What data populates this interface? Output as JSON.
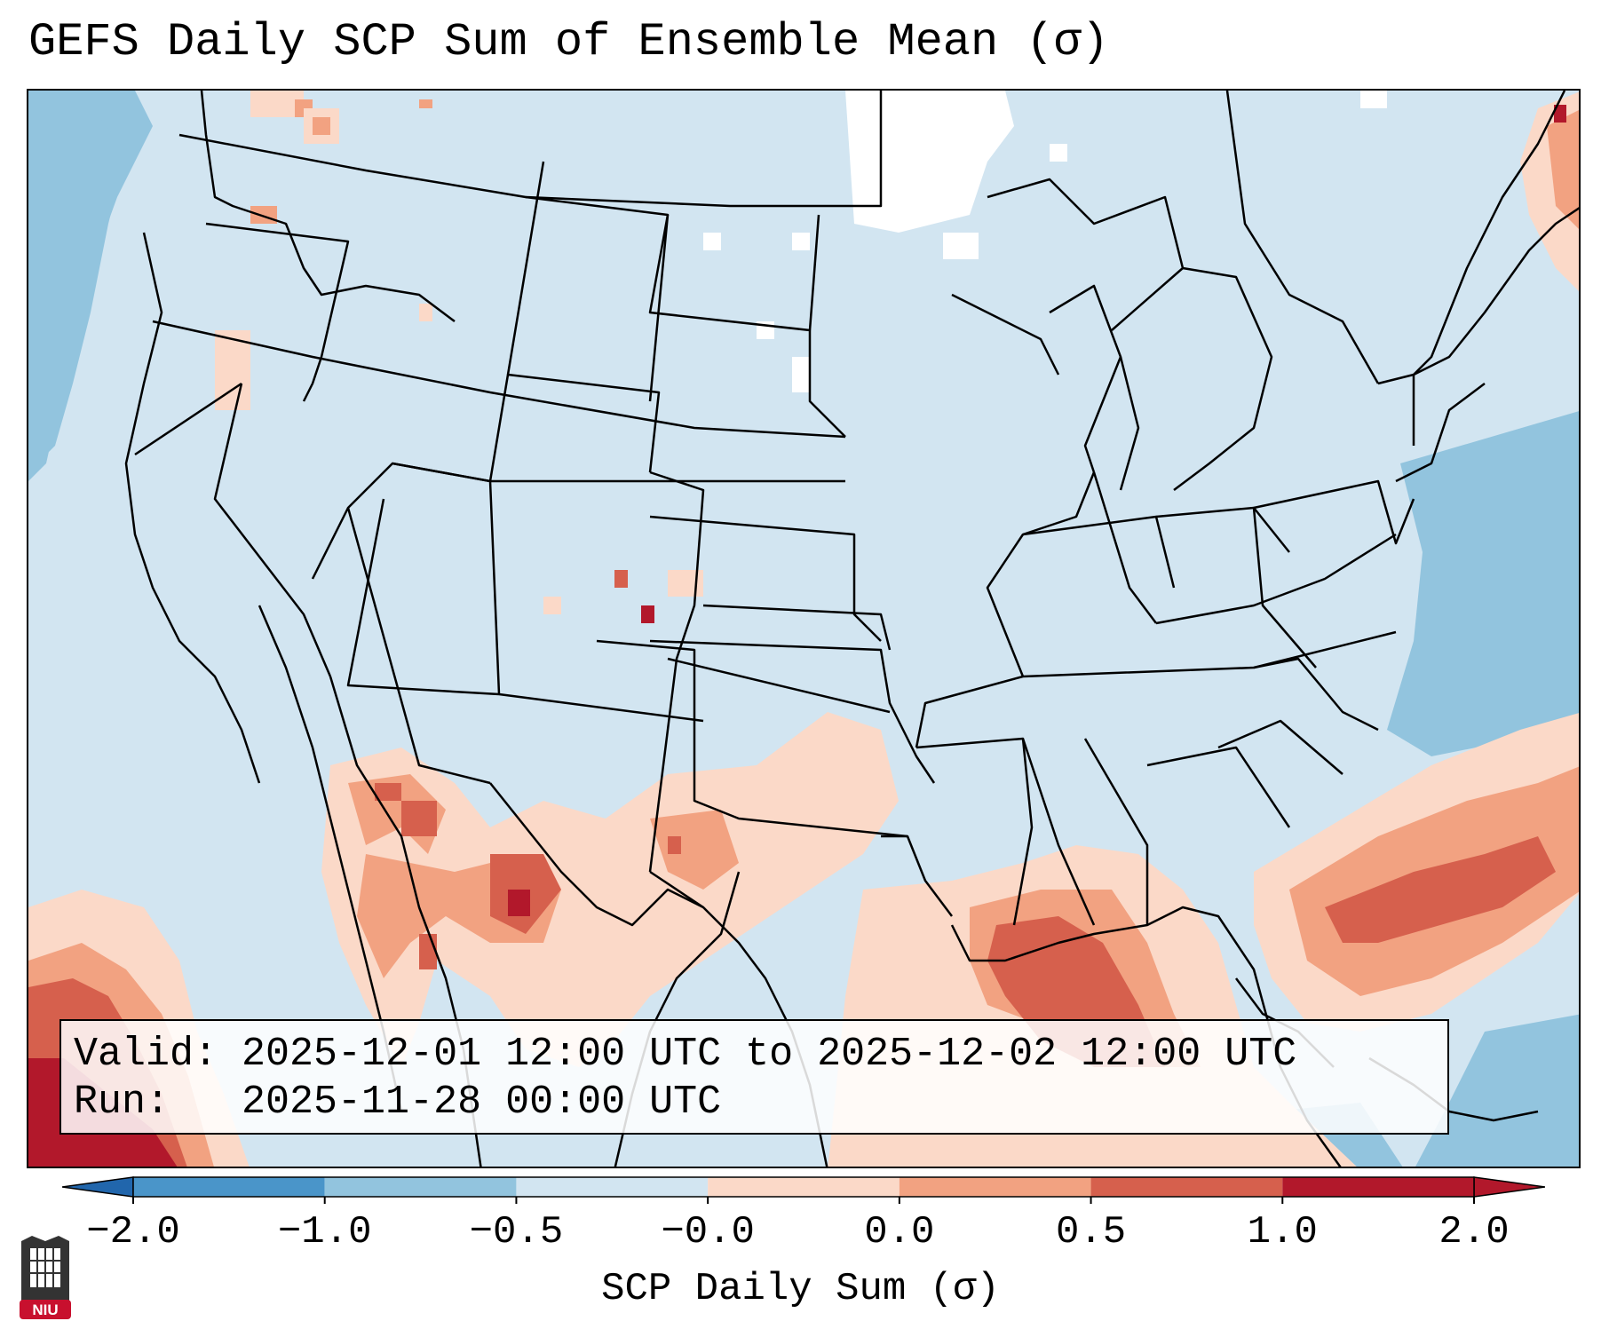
{
  "title": "GEFS Daily SCP Sum of Ensemble Mean (σ)",
  "info": {
    "valid": "Valid: 2025-12-01 12:00 UTC to 2025-12-02 12:00 UTC",
    "run": "Run:   2025-11-28 00:00 UTC"
  },
  "colorbar": {
    "label": "SCP Daily Sum (σ)",
    "ticks": [
      "−2.0",
      "−1.0",
      "−0.5",
      "−0.0",
      "0.0",
      "0.5",
      "1.0",
      "2.0"
    ],
    "colors": [
      "#2b6fb0",
      "#4a95c9",
      "#92c4de",
      "#d2e5f1",
      "#fbd9c8",
      "#f2a281",
      "#d6604d",
      "#b2182b"
    ],
    "extend_low_color": "#2166ac",
    "extend_high_color": "#b2182b"
  },
  "map": {
    "background_color": "#d2e5f1",
    "ocean_blue": "#92c4de",
    "no_data_color": "#ffffff",
    "border_color": "#000000"
  },
  "logo": {
    "text": "NIU",
    "color": "#c8102e"
  }
}
